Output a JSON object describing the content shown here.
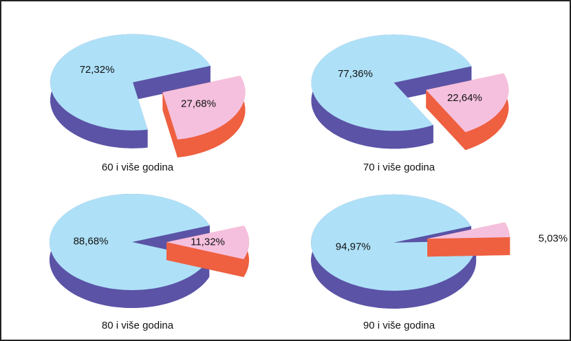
{
  "chart_data": [
    {
      "type": "pie",
      "title": "60 i više godina",
      "values": [
        72.32,
        27.68
      ],
      "value_labels": [
        "72,32%",
        "27,68%"
      ],
      "colors": [
        "#aee1f8",
        "#f5c0de"
      ],
      "side_colors": [
        "#5b53a6",
        "#ee6040"
      ]
    },
    {
      "type": "pie",
      "title": "70 i više godina",
      "values": [
        77.36,
        22.64
      ],
      "value_labels": [
        "77,36%",
        "22,64%"
      ],
      "colors": [
        "#aee1f8",
        "#f5c0de"
      ],
      "side_colors": [
        "#5b53a6",
        "#ee6040"
      ]
    },
    {
      "type": "pie",
      "title": "80 i više godina",
      "values": [
        88.68,
        11.32
      ],
      "value_labels": [
        "88,68%",
        "11,32%"
      ],
      "colors": [
        "#aee1f8",
        "#f5c0de"
      ],
      "side_colors": [
        "#5b53a6",
        "#ee6040"
      ]
    },
    {
      "type": "pie",
      "title": "90 i više godina",
      "values": [
        94.97,
        5.03
      ],
      "value_labels": [
        "94,97%",
        "5,03%"
      ],
      "colors": [
        "#aee1f8",
        "#f5c0de"
      ],
      "side_colors": [
        "#5b53a6",
        "#ee6040"
      ]
    }
  ]
}
